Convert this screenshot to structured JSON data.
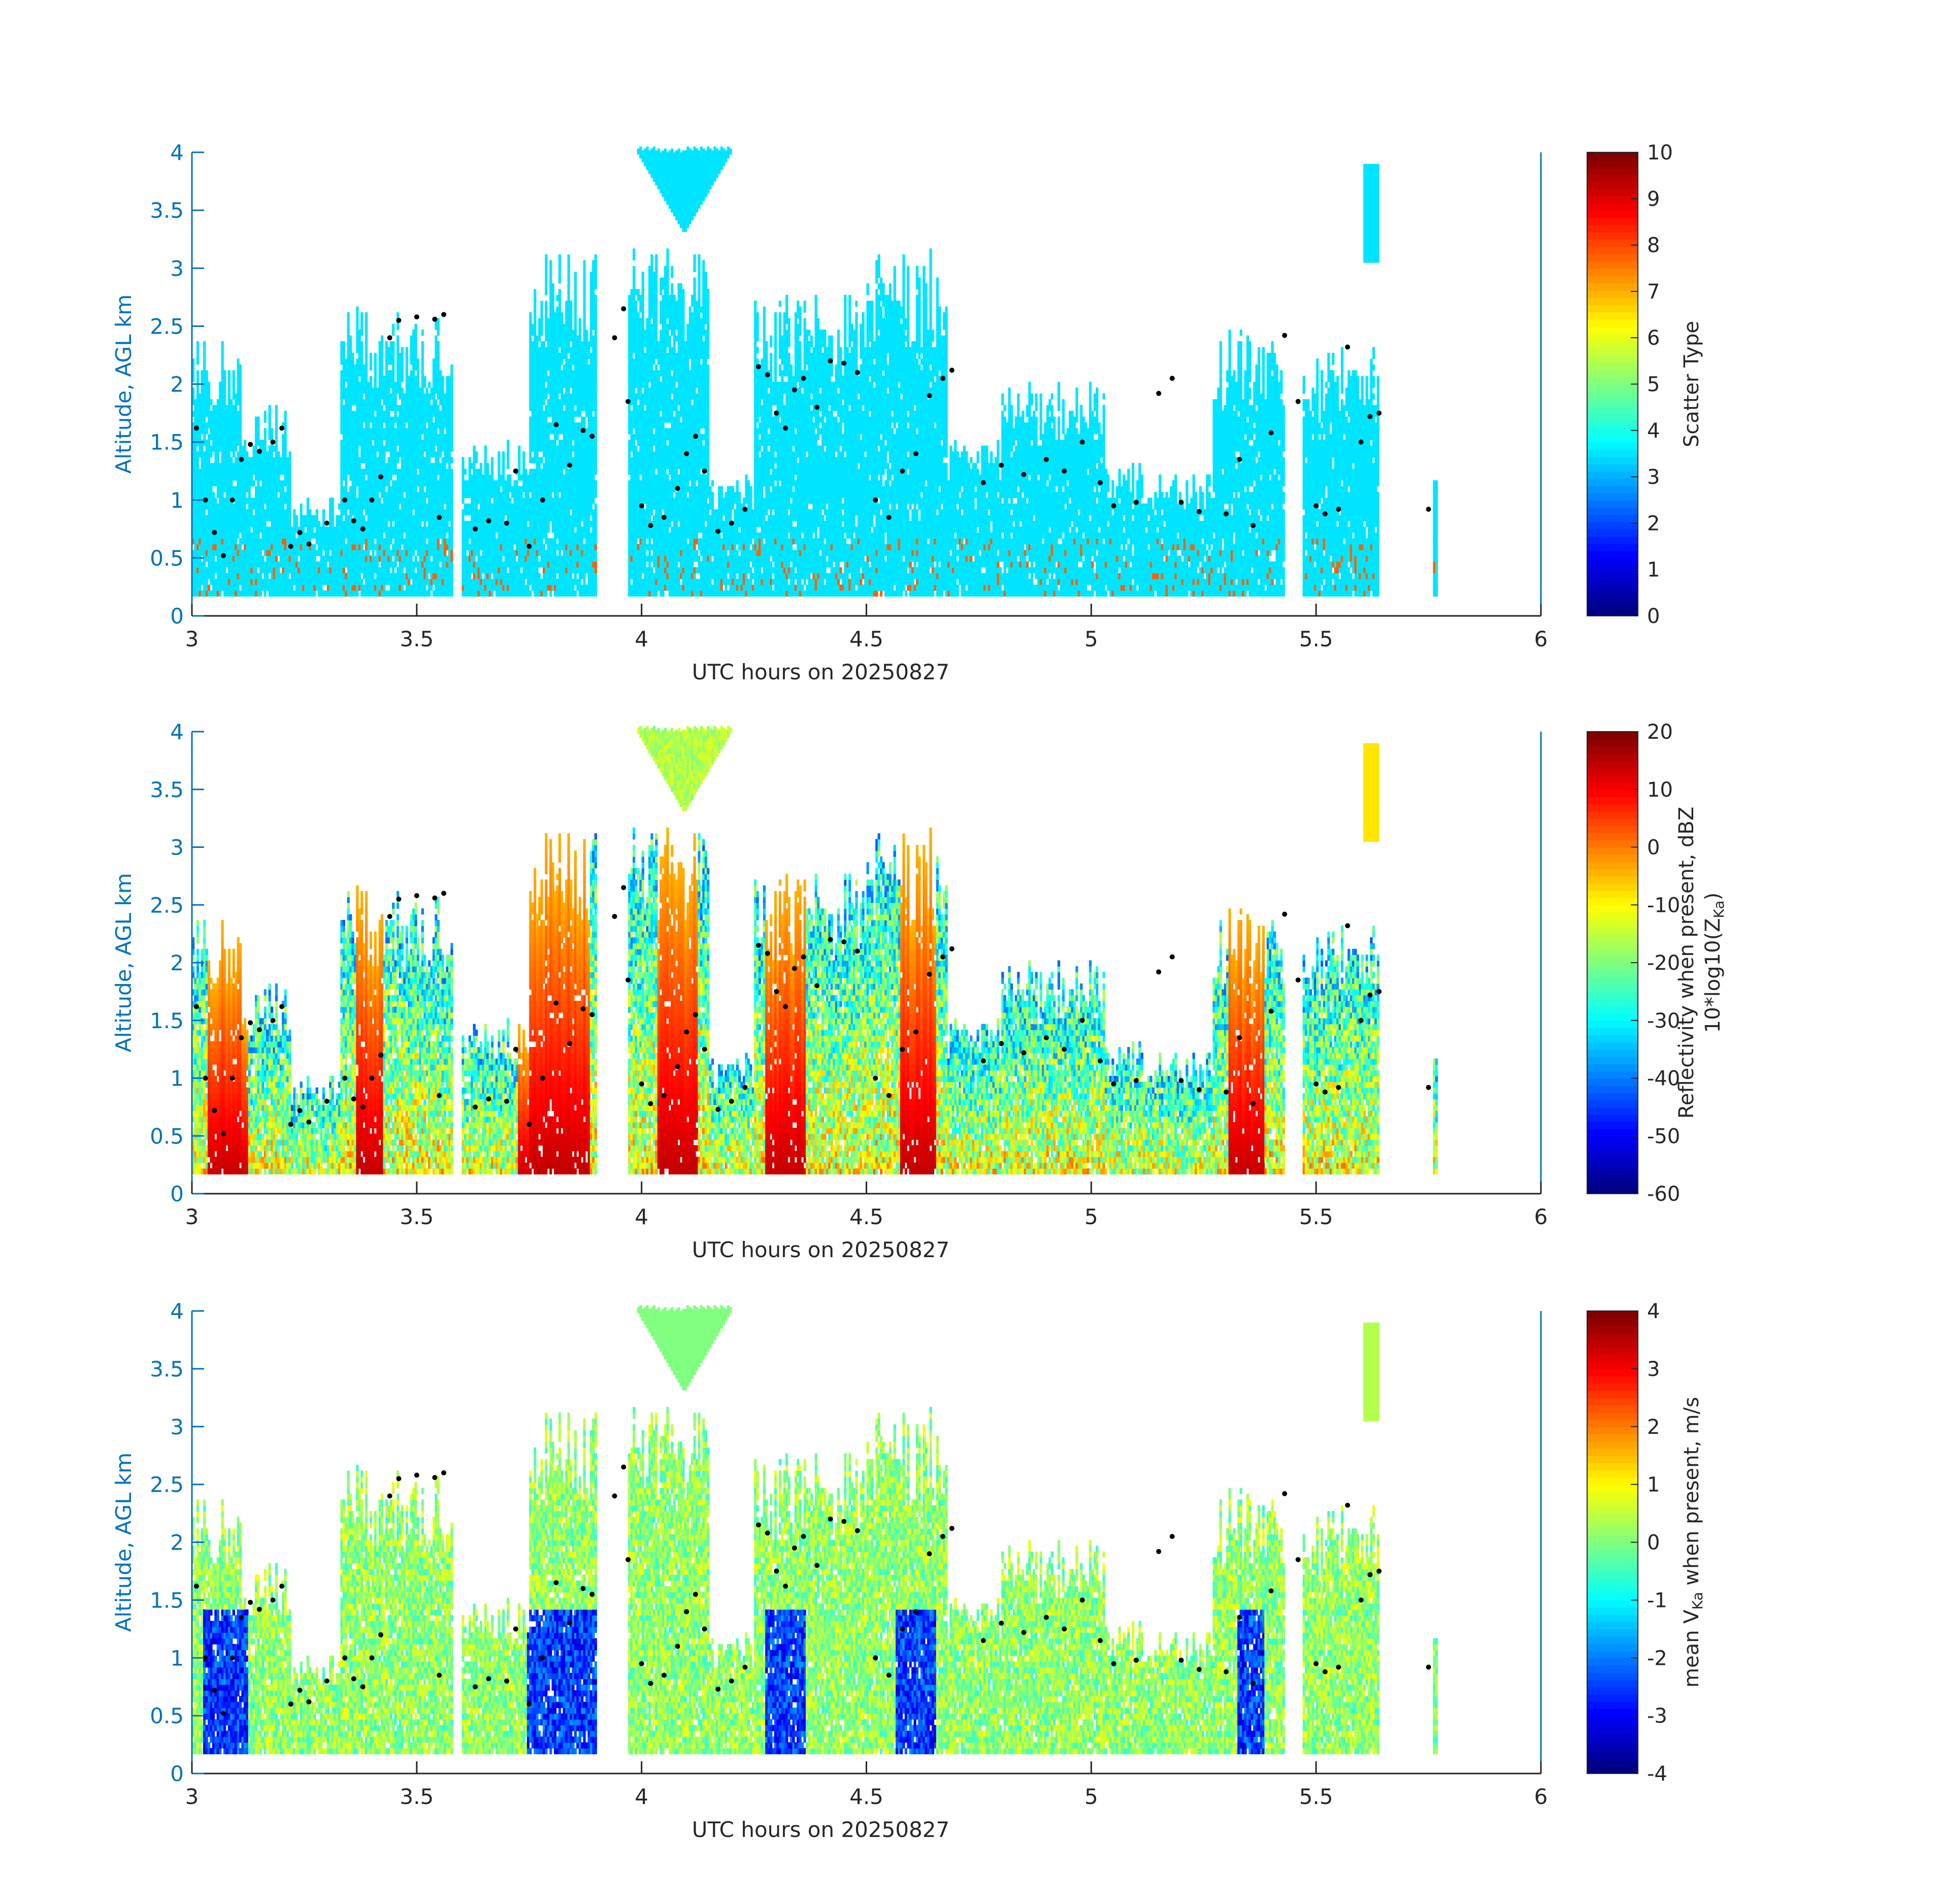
{
  "figure": {
    "background": "#ffffff"
  },
  "chart_data": [
    {
      "type": "heatmap",
      "id": "scatter-type",
      "xlabel": "UTC hours on 20250827",
      "ylabel": "Altitude, AGL km",
      "xlim": [
        3,
        6
      ],
      "ylim": [
        0,
        4
      ],
      "xticks": [
        "3",
        "3.5",
        "4",
        "4.5",
        "5",
        "5.5",
        "6"
      ],
      "yticks": [
        "0",
        "0.5",
        "1",
        "1.5",
        "2",
        "2.5",
        "3",
        "3.5",
        "4"
      ],
      "colorbar": {
        "label": [
          "Scatter Type"
        ],
        "clim": [
          0,
          10
        ],
        "ticks": [
          "0",
          "1",
          "2",
          "3",
          "4",
          "5",
          "6",
          "7",
          "8",
          "9",
          "10"
        ],
        "colormap": "jet"
      },
      "field": "category"
    },
    {
      "type": "heatmap",
      "id": "reflectivity",
      "xlabel": "UTC hours on 20250827",
      "ylabel": "Altitude, AGL km",
      "xlim": [
        3,
        6
      ],
      "ylim": [
        0,
        4
      ],
      "xticks": [
        "3",
        "3.5",
        "4",
        "4.5",
        "5",
        "5.5",
        "6"
      ],
      "yticks": [
        "0",
        "0.5",
        "1",
        "1.5",
        "2",
        "2.5",
        "3",
        "3.5",
        "4"
      ],
      "colorbar": {
        "label": [
          "Reflectivity when present, dBZ",
          "10*log10(Z",
          "Ka",
          ")"
        ],
        "clim": [
          -60,
          20
        ],
        "ticks": [
          "-60",
          "-50",
          "-40",
          "-30",
          "-20",
          "-10",
          "0",
          "10",
          "20"
        ],
        "colormap": "jet"
      },
      "field": "reflectivity"
    },
    {
      "type": "heatmap",
      "id": "velocity",
      "xlabel": "UTC hours on 20250827",
      "ylabel": "Altitude, AGL km",
      "xlim": [
        3,
        6
      ],
      "ylim": [
        0,
        4
      ],
      "xticks": [
        "3",
        "3.5",
        "4",
        "4.5",
        "5",
        "5.5",
        "6"
      ],
      "yticks": [
        "0",
        "0.5",
        "1",
        "1.5",
        "2",
        "2.5",
        "3",
        "3.5",
        "4"
      ],
      "colorbar": {
        "label": [
          "mean V",
          "Ka",
          " when present, m/s"
        ],
        "clim": [
          -4,
          4
        ],
        "ticks": [
          "-4",
          "-3",
          "-2",
          "-1",
          "0",
          "1",
          "2",
          "3",
          "4"
        ],
        "colormap": "jet"
      },
      "field": "velocity"
    }
  ],
  "cloud_columns": [
    {
      "t0": 3.0,
      "t1": 3.11,
      "top": 2.45
    },
    {
      "t0": 3.11,
      "t1": 3.22,
      "top": 1.8
    },
    {
      "t0": 3.22,
      "t1": 3.33,
      "top": 1.0
    },
    {
      "t0": 3.33,
      "t1": 3.47,
      "top": 2.7
    },
    {
      "t0": 3.47,
      "t1": 3.58,
      "top": 2.6
    },
    {
      "t0": 3.6,
      "t1": 3.75,
      "top": 1.5
    },
    {
      "t0": 3.75,
      "t1": 3.9,
      "top": 3.15
    },
    {
      "t0": 3.97,
      "t1": 4.15,
      "top": 3.15
    },
    {
      "t0": 4.15,
      "t1": 4.25,
      "top": 1.2
    },
    {
      "t0": 4.25,
      "t1": 4.5,
      "top": 2.75
    },
    {
      "t0": 4.5,
      "t1": 4.68,
      "top": 3.15
    },
    {
      "t0": 4.68,
      "t1": 4.8,
      "top": 1.5
    },
    {
      "t0": 4.8,
      "t1": 5.03,
      "top": 2.0
    },
    {
      "t0": 5.03,
      "t1": 5.12,
      "top": 1.3
    },
    {
      "t0": 5.12,
      "t1": 5.27,
      "top": 1.2
    },
    {
      "t0": 5.27,
      "t1": 5.43,
      "top": 2.45
    },
    {
      "t0": 5.47,
      "t1": 5.64,
      "top": 2.3
    }
  ],
  "dots": [
    [
      3.01,
      1.62
    ],
    [
      3.03,
      1.0
    ],
    [
      3.05,
      0.72
    ],
    [
      3.07,
      0.52
    ],
    [
      3.09,
      1.0
    ],
    [
      3.11,
      1.35
    ],
    [
      3.13,
      1.48
    ],
    [
      3.15,
      1.42
    ],
    [
      3.18,
      1.5
    ],
    [
      3.2,
      1.62
    ],
    [
      3.22,
      0.6
    ],
    [
      3.24,
      0.72
    ],
    [
      3.26,
      0.62
    ],
    [
      3.3,
      0.8
    ],
    [
      3.34,
      1.0
    ],
    [
      3.36,
      0.82
    ],
    [
      3.38,
      0.75
    ],
    [
      3.4,
      1.0
    ],
    [
      3.42,
      1.2
    ],
    [
      3.44,
      2.4
    ],
    [
      3.46,
      2.55
    ],
    [
      3.5,
      2.58
    ],
    [
      3.54,
      2.56
    ],
    [
      3.56,
      2.6
    ],
    [
      3.55,
      0.85
    ],
    [
      3.63,
      0.75
    ],
    [
      3.66,
      0.82
    ],
    [
      3.7,
      0.8
    ],
    [
      3.72,
      1.25
    ],
    [
      3.75,
      0.6
    ],
    [
      3.78,
      1.0
    ],
    [
      3.81,
      1.65
    ],
    [
      3.84,
      1.3
    ],
    [
      3.87,
      1.6
    ],
    [
      3.89,
      1.55
    ],
    [
      3.94,
      2.4
    ],
    [
      3.96,
      2.65
    ],
    [
      3.97,
      1.85
    ],
    [
      4.0,
      0.95
    ],
    [
      4.02,
      0.78
    ],
    [
      4.05,
      0.85
    ],
    [
      4.08,
      1.1
    ],
    [
      4.1,
      1.4
    ],
    [
      4.12,
      1.55
    ],
    [
      4.14,
      1.25
    ],
    [
      4.17,
      0.73
    ],
    [
      4.2,
      0.8
    ],
    [
      4.23,
      0.92
    ],
    [
      4.26,
      2.15
    ],
    [
      4.28,
      2.08
    ],
    [
      4.3,
      1.75
    ],
    [
      4.32,
      1.62
    ],
    [
      4.34,
      1.95
    ],
    [
      4.36,
      2.05
    ],
    [
      4.39,
      1.8
    ],
    [
      4.42,
      2.2
    ],
    [
      4.45,
      2.18
    ],
    [
      4.48,
      2.1
    ],
    [
      4.52,
      1.0
    ],
    [
      4.55,
      0.85
    ],
    [
      4.58,
      1.25
    ],
    [
      4.61,
      1.4
    ],
    [
      4.64,
      1.9
    ],
    [
      4.67,
      2.05
    ],
    [
      4.69,
      2.12
    ],
    [
      4.76,
      1.15
    ],
    [
      4.8,
      1.3
    ],
    [
      4.85,
      1.22
    ],
    [
      4.9,
      1.35
    ],
    [
      4.94,
      1.25
    ],
    [
      4.98,
      1.5
    ],
    [
      5.02,
      1.15
    ],
    [
      5.05,
      0.95
    ],
    [
      5.1,
      0.98
    ],
    [
      5.15,
      1.92
    ],
    [
      5.18,
      2.05
    ],
    [
      5.2,
      0.98
    ],
    [
      5.24,
      0.9
    ],
    [
      5.3,
      0.88
    ],
    [
      5.33,
      1.35
    ],
    [
      5.36,
      0.78
    ],
    [
      5.4,
      1.58
    ],
    [
      5.43,
      2.42
    ],
    [
      5.46,
      1.85
    ],
    [
      5.5,
      0.95
    ],
    [
      5.52,
      0.88
    ],
    [
      5.55,
      0.92
    ],
    [
      5.57,
      2.32
    ],
    [
      5.6,
      1.5
    ],
    [
      5.62,
      1.72
    ],
    [
      5.64,
      1.75
    ],
    [
      5.75,
      0.92
    ]
  ]
}
